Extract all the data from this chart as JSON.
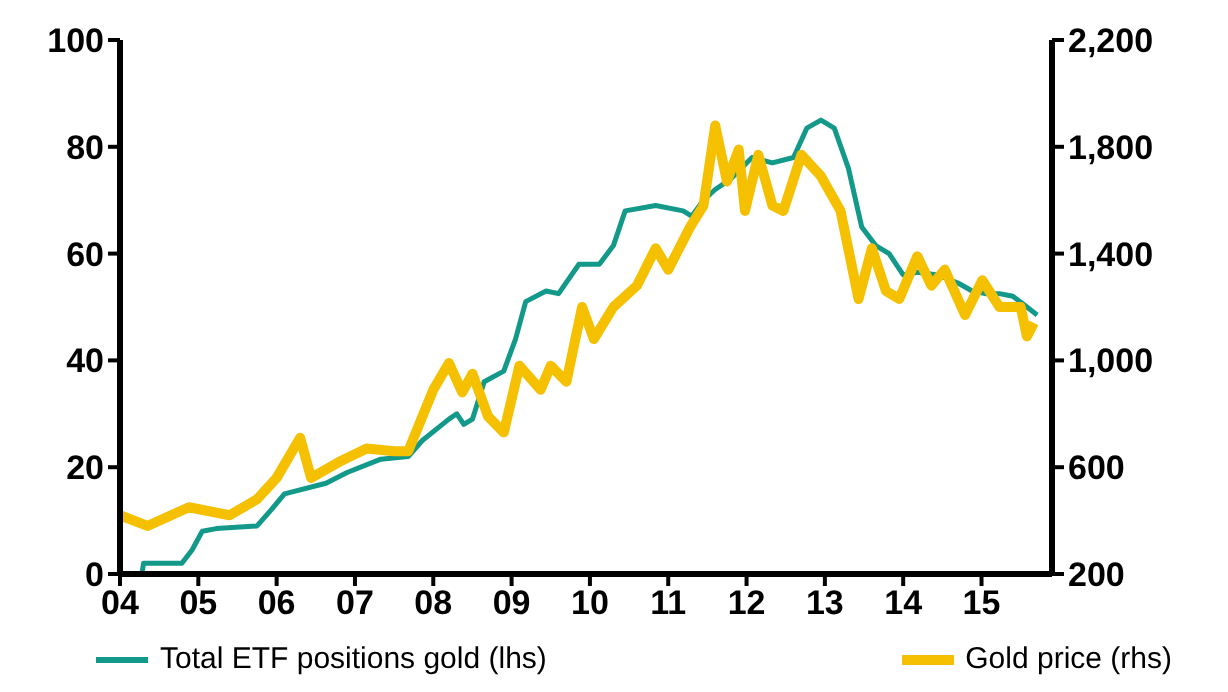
{
  "chart_data": {
    "type": "line",
    "xlim": [
      2004,
      2015.9
    ],
    "xticks": [
      {
        "value": 2004,
        "label": "04"
      },
      {
        "value": 2005,
        "label": "05"
      },
      {
        "value": 2006,
        "label": "06"
      },
      {
        "value": 2007,
        "label": "07"
      },
      {
        "value": 2008,
        "label": "08"
      },
      {
        "value": 2009,
        "label": "09"
      },
      {
        "value": 2010,
        "label": "10"
      },
      {
        "value": 2011,
        "label": "11"
      },
      {
        "value": 2012,
        "label": "12"
      },
      {
        "value": 2013,
        "label": "13"
      },
      {
        "value": 2014,
        "label": "14"
      },
      {
        "value": 2015,
        "label": "15"
      }
    ],
    "ylim": [
      0,
      100
    ],
    "yticks": [
      0,
      20,
      40,
      60,
      80,
      100
    ],
    "y2lim": [
      200,
      2200
    ],
    "y2ticks": [
      {
        "value": 200,
        "label": "200"
      },
      {
        "value": 600,
        "label": "600"
      },
      {
        "value": 1000,
        "label": "1,000"
      },
      {
        "value": 1400,
        "label": "1,400"
      },
      {
        "value": 1800,
        "label": "1,800"
      },
      {
        "value": 2200,
        "label": "2,200"
      }
    ],
    "grid": false,
    "legend": "bottom",
    "marker": "none",
    "series": [
      {
        "name": "Total ETF positions gold (lhs)",
        "color": "#12998a",
        "x": [
          2004.0,
          2004.28,
          2004.3,
          2004.79,
          2004.92,
          2005.05,
          2005.23,
          2005.75,
          2005.93,
          2006.1,
          2006.63,
          2006.9,
          2007.33,
          2007.68,
          2007.86,
          2008.2,
          2008.3,
          2008.39,
          2008.5,
          2008.65,
          2008.9,
          2009.05,
          2009.18,
          2009.44,
          2009.6,
          2009.86,
          2010.12,
          2010.3,
          2010.45,
          2010.84,
          2011.19,
          2011.3,
          2011.45,
          2011.6,
          2011.8,
          2012.07,
          2012.33,
          2012.6,
          2012.77,
          2012.95,
          2013.12,
          2013.3,
          2013.47,
          2013.65,
          2013.82,
          2014.0,
          2014.18,
          2014.44,
          2014.7,
          2014.88,
          2015.05,
          2015.23,
          2015.4,
          2015.58,
          2015.71
        ],
        "values": [
          0,
          0,
          2,
          2,
          4.5,
          8,
          8.5,
          9,
          12,
          15,
          17,
          19,
          21.5,
          22,
          25,
          29,
          30,
          28,
          29,
          36,
          38,
          44,
          51,
          53,
          52.5,
          58,
          58,
          61.5,
          68,
          69,
          68,
          67,
          70,
          72,
          74,
          78,
          77,
          78,
          83.5,
          85,
          83.5,
          76,
          65,
          61.5,
          60,
          56,
          56.5,
          56,
          54.5,
          53,
          52.5,
          52.5,
          52,
          50,
          48.5
        ]
      },
      {
        "name": "Gold price (rhs)",
        "color": "#f5c000",
        "axis": "y2",
        "x": [
          2004.0,
          2004.35,
          2004.88,
          2005.4,
          2005.75,
          2006.0,
          2006.3,
          2006.44,
          2006.8,
          2007.15,
          2007.5,
          2007.68,
          2008.0,
          2008.2,
          2008.37,
          2008.5,
          2008.7,
          2008.9,
          2009.1,
          2009.37,
          2009.5,
          2009.7,
          2009.9,
          2010.05,
          2010.3,
          2010.6,
          2010.84,
          2011.0,
          2011.28,
          2011.45,
          2011.6,
          2011.75,
          2011.9,
          2011.98,
          2012.15,
          2012.33,
          2012.47,
          2012.7,
          2012.95,
          2013.2,
          2013.43,
          2013.6,
          2013.78,
          2013.95,
          2014.18,
          2014.36,
          2014.53,
          2014.79,
          2015.01,
          2015.23,
          2015.5,
          2015.58,
          2015.67
        ],
        "values": [
          420,
          380,
          450,
          420,
          480,
          560,
          710,
          560,
          620,
          670,
          660,
          660,
          890,
          990,
          880,
          950,
          790,
          730,
          980,
          890,
          980,
          920,
          1200,
          1080,
          1200,
          1280,
          1420,
          1340,
          1500,
          1580,
          1880,
          1670,
          1790,
          1560,
          1770,
          1580,
          1560,
          1770,
          1690,
          1560,
          1230,
          1420,
          1260,
          1230,
          1390,
          1280,
          1340,
          1170,
          1300,
          1200,
          1200,
          1090,
          1140
        ]
      }
    ]
  }
}
